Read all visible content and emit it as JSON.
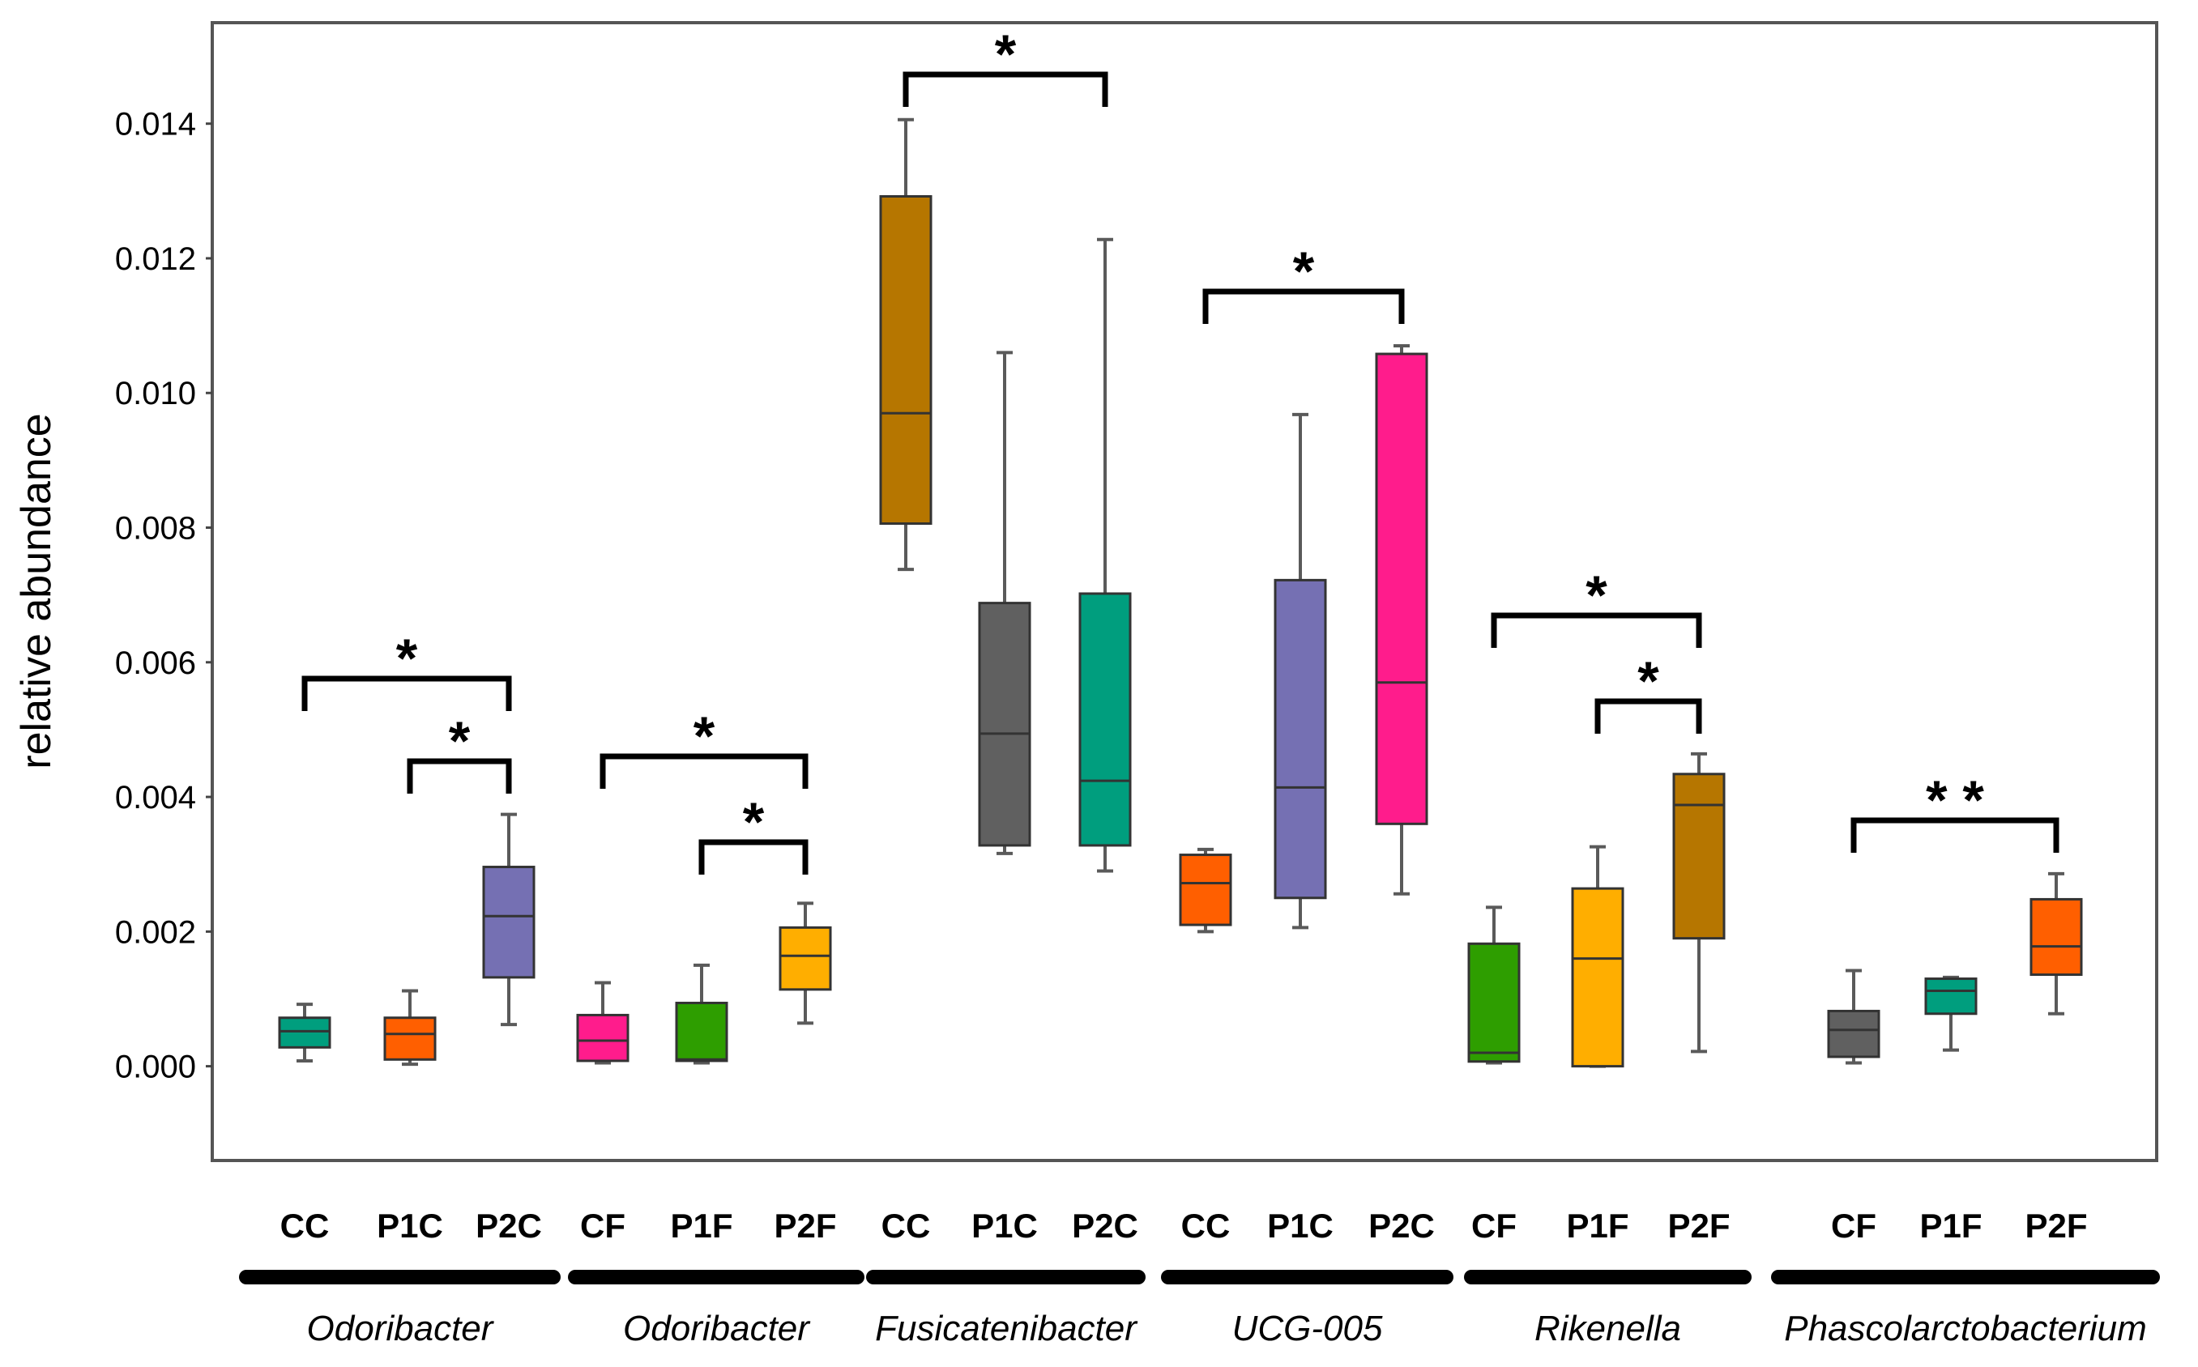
{
  "chart_data": {
    "type": "boxplot",
    "ylabel": "relative abundance",
    "xlabel": "",
    "ylim": [
      -0.0014,
      0.0155
    ],
    "yticks": [
      "0.000",
      "0.002",
      "0.004",
      "0.006",
      "0.008",
      "0.010",
      "0.012",
      "0.014"
    ],
    "groups": [
      {
        "genus": "Odoribacter",
        "boxes": [
          {
            "label": "CC",
            "color": "#009E7E",
            "min": 8e-05,
            "q1": 0.00028,
            "median": 0.00052,
            "q3": 0.00072,
            "max": 0.00092
          },
          {
            "label": "P1C",
            "color": "#FF5F00",
            "min": 3e-05,
            "q1": 0.0001,
            "median": 0.00048,
            "q3": 0.00072,
            "max": 0.00112
          },
          {
            "label": "P2C",
            "color": "#7570B3",
            "min": 0.00062,
            "q1": 0.00132,
            "median": 0.00223,
            "q3": 0.00296,
            "max": 0.00374
          }
        ],
        "brackets": [
          {
            "from": 0,
            "to": 2,
            "label": "*"
          },
          {
            "from": 1,
            "to": 2,
            "label": "*"
          }
        ]
      },
      {
        "genus": "Odoribacter",
        "boxes": [
          {
            "label": "CF",
            "color": "#FF1C8C",
            "min": 5e-05,
            "q1": 8e-05,
            "median": 0.00038,
            "q3": 0.00076,
            "max": 0.00124
          },
          {
            "label": "P1F",
            "color": "#2E9E00",
            "min": 5e-05,
            "q1": 8e-05,
            "median": 0.0001,
            "q3": 0.00094,
            "max": 0.0015
          },
          {
            "label": "P2F",
            "color": "#FFAE00",
            "min": 0.00064,
            "q1": 0.00114,
            "median": 0.00164,
            "q3": 0.00206,
            "max": 0.00242
          }
        ],
        "brackets": [
          {
            "from": 0,
            "to": 2,
            "label": "*"
          },
          {
            "from": 1,
            "to": 2,
            "label": "*"
          }
        ]
      },
      {
        "genus": "Fusicatenibacter",
        "boxes": [
          {
            "label": "CC",
            "color": "#B67600",
            "min": 0.00738,
            "q1": 0.00806,
            "median": 0.0097,
            "q3": 0.01292,
            "max": 0.01406
          },
          {
            "label": "P1C",
            "color": "#606060",
            "min": 0.00316,
            "q1": 0.00328,
            "median": 0.00494,
            "q3": 0.00688,
            "max": 0.0106
          },
          {
            "label": "P2C",
            "color": "#009E7E",
            "min": 0.0029,
            "q1": 0.00328,
            "median": 0.00424,
            "q3": 0.00702,
            "max": 0.01228
          }
        ],
        "brackets": [
          {
            "from": 0,
            "to": 2,
            "label": "*"
          }
        ]
      },
      {
        "genus": "UCG-005",
        "boxes": [
          {
            "label": "CC",
            "color": "#FF5F00",
            "min": 0.002,
            "q1": 0.0021,
            "median": 0.00272,
            "q3": 0.00314,
            "max": 0.00322
          },
          {
            "label": "P1C",
            "color": "#7570B3",
            "min": 0.00206,
            "q1": 0.0025,
            "median": 0.00414,
            "q3": 0.00722,
            "max": 0.00968
          },
          {
            "label": "P2C",
            "color": "#FF1C8C",
            "min": 0.00256,
            "q1": 0.0036,
            "median": 0.0057,
            "q3": 0.01058,
            "max": 0.0107
          }
        ],
        "brackets": [
          {
            "from": 0,
            "to": 2,
            "label": "*"
          }
        ]
      },
      {
        "genus": "Rikenella",
        "boxes": [
          {
            "label": "CF",
            "color": "#2E9E00",
            "min": 5e-05,
            "q1": 7e-05,
            "median": 0.0002,
            "q3": 0.00182,
            "max": 0.00236
          },
          {
            "label": "P1F",
            "color": "#FFAE00",
            "min": 0.0,
            "q1": 0.0,
            "median": 0.0016,
            "q3": 0.00264,
            "max": 0.00326
          },
          {
            "label": "P2F",
            "color": "#B67600",
            "min": 0.00022,
            "q1": 0.0019,
            "median": 0.00388,
            "q3": 0.00434,
            "max": 0.00464
          }
        ],
        "brackets": [
          {
            "from": 0,
            "to": 2,
            "label": "*"
          },
          {
            "from": 1,
            "to": 2,
            "label": "*"
          }
        ]
      },
      {
        "genus": "Phascolarctobacterium",
        "boxes": [
          {
            "label": "CF",
            "color": "#606060",
            "min": 5e-05,
            "q1": 0.00014,
            "median": 0.00054,
            "q3": 0.00082,
            "max": 0.00142
          },
          {
            "label": "P1F",
            "color": "#009E7E",
            "min": 0.00024,
            "q1": 0.00078,
            "median": 0.00112,
            "q3": 0.0013,
            "max": 0.00132
          },
          {
            "label": "P2F",
            "color": "#FF5F00",
            "min": 0.00078,
            "q1": 0.00136,
            "median": 0.00178,
            "q3": 0.00248,
            "max": 0.00286
          }
        ],
        "brackets": [
          {
            "from": 0,
            "to": 2,
            "label": "**"
          }
        ]
      }
    ]
  }
}
